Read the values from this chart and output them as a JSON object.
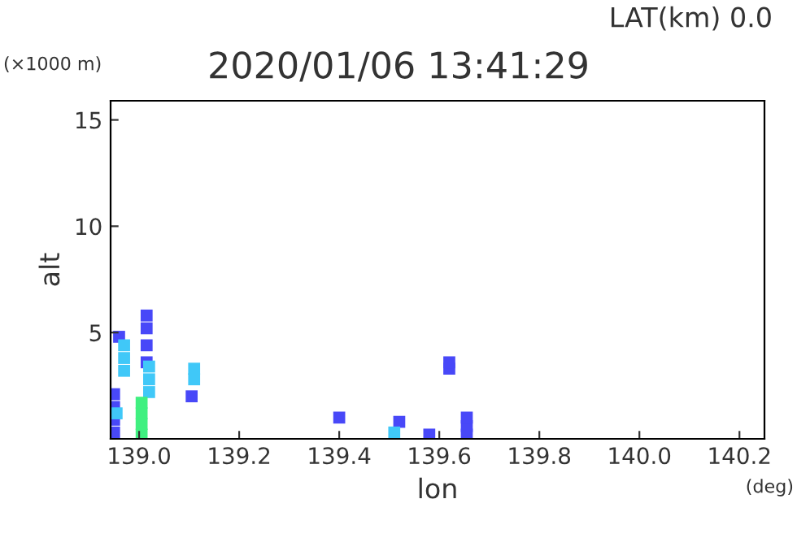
{
  "chart_data": {
    "type": "scatter",
    "title": "2020/01/06 13:41:29",
    "xlabel": "lon",
    "ylabel": "alt",
    "annotations": [
      "LAT(km) 0.0",
      "(×1000 m)",
      "(deg)"
    ],
    "series": [
      {
        "color": "#4848f8",
        "x": [
          138.95,
          138.95,
          138.95,
          138.95,
          138.96,
          139.015,
          139.015,
          139.015,
          139.015,
          139.105,
          139.4,
          139.52,
          139.58,
          139.62,
          139.62,
          139.655,
          139.655,
          139.655
        ],
        "values": [
          0.3,
          0.9,
          1.5,
          2.1,
          4.8,
          3.6,
          4.4,
          5.2,
          5.8,
          2.0,
          1.0,
          0.8,
          0.2,
          3.3,
          3.6,
          0.2,
          0.6,
          1.0
        ]
      },
      {
        "color": "#40c8f8",
        "x": [
          138.955,
          138.97,
          138.97,
          138.97,
          139.02,
          139.02,
          139.02,
          139.11,
          139.11,
          139.51
        ],
        "values": [
          1.2,
          3.2,
          3.8,
          4.4,
          2.2,
          2.8,
          3.4,
          2.8,
          3.3,
          0.3
        ]
      },
      {
        "color": "#40f080",
        "x": [
          139.005,
          139.005,
          139.005,
          139.005
        ],
        "values": [
          0.2,
          0.7,
          1.2,
          1.7
        ]
      }
    ],
    "marker": "square",
    "xlim": [
      138.943,
      140.25
    ],
    "ylim": [
      0,
      15.9
    ],
    "xticks": [
      {
        "value": 139.0,
        "label": "139.0"
      },
      {
        "value": 139.2,
        "label": "139.2"
      },
      {
        "value": 139.4,
        "label": "139.4"
      },
      {
        "value": 139.6,
        "label": "139.6"
      },
      {
        "value": 139.8,
        "label": "139.8"
      },
      {
        "value": 140.0,
        "label": "140.0"
      },
      {
        "value": 140.2,
        "label": "140.2"
      }
    ],
    "yticks": [
      5,
      10,
      15
    ]
  }
}
